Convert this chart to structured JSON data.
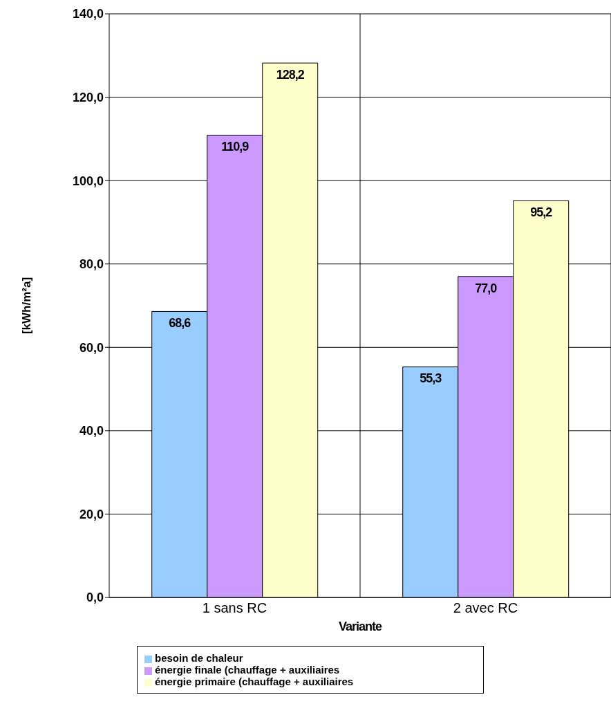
{
  "chart_data": {
    "type": "bar",
    "xlabel": "Variante",
    "ylabel": "[kWh/m²a]",
    "categories": [
      "1 sans  RC",
      "2 avec  RC"
    ],
    "series": [
      {
        "name": "besoin de chaleur",
        "color": "#99ccff",
        "values": [
          68.6,
          55.3
        ],
        "value_labels": [
          "68,6",
          "55,3"
        ]
      },
      {
        "name": "énergie finale (chauffage + auxiliaires",
        "color": "#cc99ff",
        "values": [
          110.9,
          77.0
        ],
        "value_labels": [
          "110,9",
          "77,0"
        ]
      },
      {
        "name": "énergie primaire (chauffage + auxiliaires",
        "color": "#ffffcc",
        "values": [
          128.2,
          95.2
        ],
        "value_labels": [
          "128,2",
          "95,2"
        ]
      }
    ],
    "ylim": [
      0,
      140
    ],
    "yticks": [
      {
        "value": 0,
        "label": "0,0"
      },
      {
        "value": 20,
        "label": "20,0"
      },
      {
        "value": 40,
        "label": "40,0"
      },
      {
        "value": 60,
        "label": "60,0"
      },
      {
        "value": 80,
        "label": "80,0"
      },
      {
        "value": 100,
        "label": "100,0"
      },
      {
        "value": 120,
        "label": "120,0"
      },
      {
        "value": 140,
        "label": "140,0"
      }
    ],
    "grid": true,
    "legend": "bottom"
  }
}
